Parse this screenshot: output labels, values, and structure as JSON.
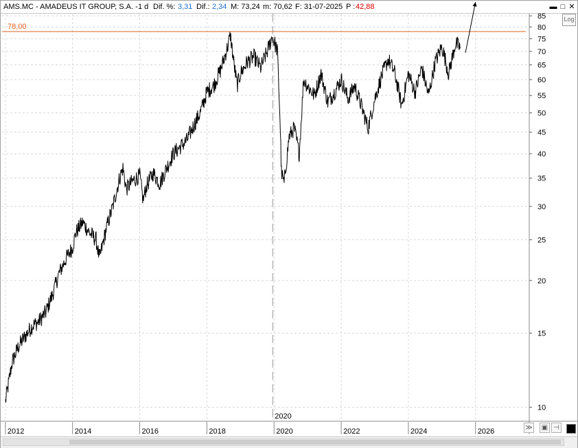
{
  "window": {
    "ticker": "AMS.MC - AMADEUS IT GROUP, S.A. -",
    "period": "1 d",
    "pct_label": "Dif. %:",
    "pct_value": "3,31",
    "diff_label": "Dif.:",
    "diff_value": "2,34",
    "max_label": "M: 73,24",
    "min_label": "m: 70,62",
    "date_label": "F: 31-07-2025",
    "price_label": "P :",
    "price_value": "42,88",
    "min_button": "▬",
    "max_button": "□",
    "close_button": "✕",
    "log_button": "Log"
  },
  "colors": {
    "line": "#000000",
    "hline": "#e06020",
    "blue_value": "#1f6fd1",
    "red_value": "#e00000",
    "grid": "#d8d8d8"
  },
  "chart_data": {
    "type": "line",
    "title": "",
    "y_scale": "log",
    "ylim": [
      9.3,
      86
    ],
    "yticks": [
      10,
      15,
      20,
      25,
      30,
      35,
      40,
      45,
      50,
      55,
      60,
      65,
      70,
      75,
      80,
      85
    ],
    "xlim": [
      2011.9,
      2027.6
    ],
    "xticks": [
      {
        "x": 2012,
        "label": "2012"
      },
      {
        "x": 2014,
        "label": "2014"
      },
      {
        "x": 2016,
        "label": "2016"
      },
      {
        "x": 2018,
        "label": "2018"
      },
      {
        "x": 2020,
        "label": "2020"
      },
      {
        "x": 2022,
        "label": "2022"
      },
      {
        "x": 2024,
        "label": "2024"
      },
      {
        "x": 2026,
        "label": "2026"
      }
    ],
    "horizontal_line": {
      "value": 78.0,
      "label": "78,00"
    },
    "vertical_marker": {
      "x": 2020.0,
      "label": "2020"
    },
    "series": [
      {
        "values": [
          [
            2012.0,
            10.3
          ],
          [
            2012.2,
            12.8
          ],
          [
            2012.4,
            14.0
          ],
          [
            2012.6,
            14.8
          ],
          [
            2012.8,
            15.6
          ],
          [
            2013.0,
            16.0
          ],
          [
            2013.2,
            16.8
          ],
          [
            2013.4,
            18.5
          ],
          [
            2013.6,
            20.8
          ],
          [
            2013.8,
            22.5
          ],
          [
            2014.0,
            24.0
          ],
          [
            2014.1,
            26.0
          ],
          [
            2014.3,
            27.5
          ],
          [
            2014.5,
            26.0
          ],
          [
            2014.7,
            25.0
          ],
          [
            2014.8,
            22.5
          ],
          [
            2015.0,
            26.5
          ],
          [
            2015.2,
            30.0
          ],
          [
            2015.4,
            35.0
          ],
          [
            2015.5,
            37.0
          ],
          [
            2015.6,
            33.0
          ],
          [
            2015.8,
            34.5
          ],
          [
            2016.0,
            35.5
          ],
          [
            2016.1,
            31.0
          ],
          [
            2016.2,
            33.5
          ],
          [
            2016.4,
            36.0
          ],
          [
            2016.6,
            34.0
          ],
          [
            2016.8,
            37.0
          ],
          [
            2017.0,
            40.0
          ],
          [
            2017.2,
            41.5
          ],
          [
            2017.4,
            43.0
          ],
          [
            2017.6,
            46.5
          ],
          [
            2017.8,
            50.0
          ],
          [
            2018.0,
            56.0
          ],
          [
            2018.2,
            58.0
          ],
          [
            2018.4,
            63.0
          ],
          [
            2018.6,
            71.0
          ],
          [
            2018.7,
            76.5
          ],
          [
            2018.8,
            66.0
          ],
          [
            2018.9,
            58.0
          ],
          [
            2019.0,
            62.0
          ],
          [
            2019.2,
            66.0
          ],
          [
            2019.4,
            68.0
          ],
          [
            2019.6,
            64.0
          ],
          [
            2019.8,
            70.0
          ],
          [
            2019.95,
            76.0
          ],
          [
            2020.1,
            70.0
          ],
          [
            2020.18,
            48.0
          ],
          [
            2020.22,
            36.0
          ],
          [
            2020.3,
            34.0
          ],
          [
            2020.45,
            44.0
          ],
          [
            2020.6,
            46.0
          ],
          [
            2020.75,
            40.0
          ],
          [
            2020.88,
            60.0
          ],
          [
            2021.0,
            58.0
          ],
          [
            2021.2,
            55.0
          ],
          [
            2021.4,
            62.0
          ],
          [
            2021.6,
            53.0
          ],
          [
            2021.8,
            56.0
          ],
          [
            2022.0,
            60.0
          ],
          [
            2022.2,
            54.0
          ],
          [
            2022.4,
            58.0
          ],
          [
            2022.6,
            52.0
          ],
          [
            2022.8,
            46.0
          ],
          [
            2023.0,
            54.0
          ],
          [
            2023.2,
            61.0
          ],
          [
            2023.4,
            67.0
          ],
          [
            2023.6,
            62.0
          ],
          [
            2023.8,
            52.0
          ],
          [
            2024.0,
            62.0
          ],
          [
            2024.2,
            56.0
          ],
          [
            2024.4,
            64.0
          ],
          [
            2024.6,
            55.0
          ],
          [
            2024.8,
            66.0
          ],
          [
            2025.0,
            72.0
          ],
          [
            2025.2,
            62.0
          ],
          [
            2025.4,
            73.0
          ],
          [
            2025.55,
            71.5
          ]
        ]
      }
    ],
    "arrow": {
      "from": [
        2025.7,
        69.5
      ],
      "to": [
        2026.0,
        94.0
      ]
    }
  }
}
